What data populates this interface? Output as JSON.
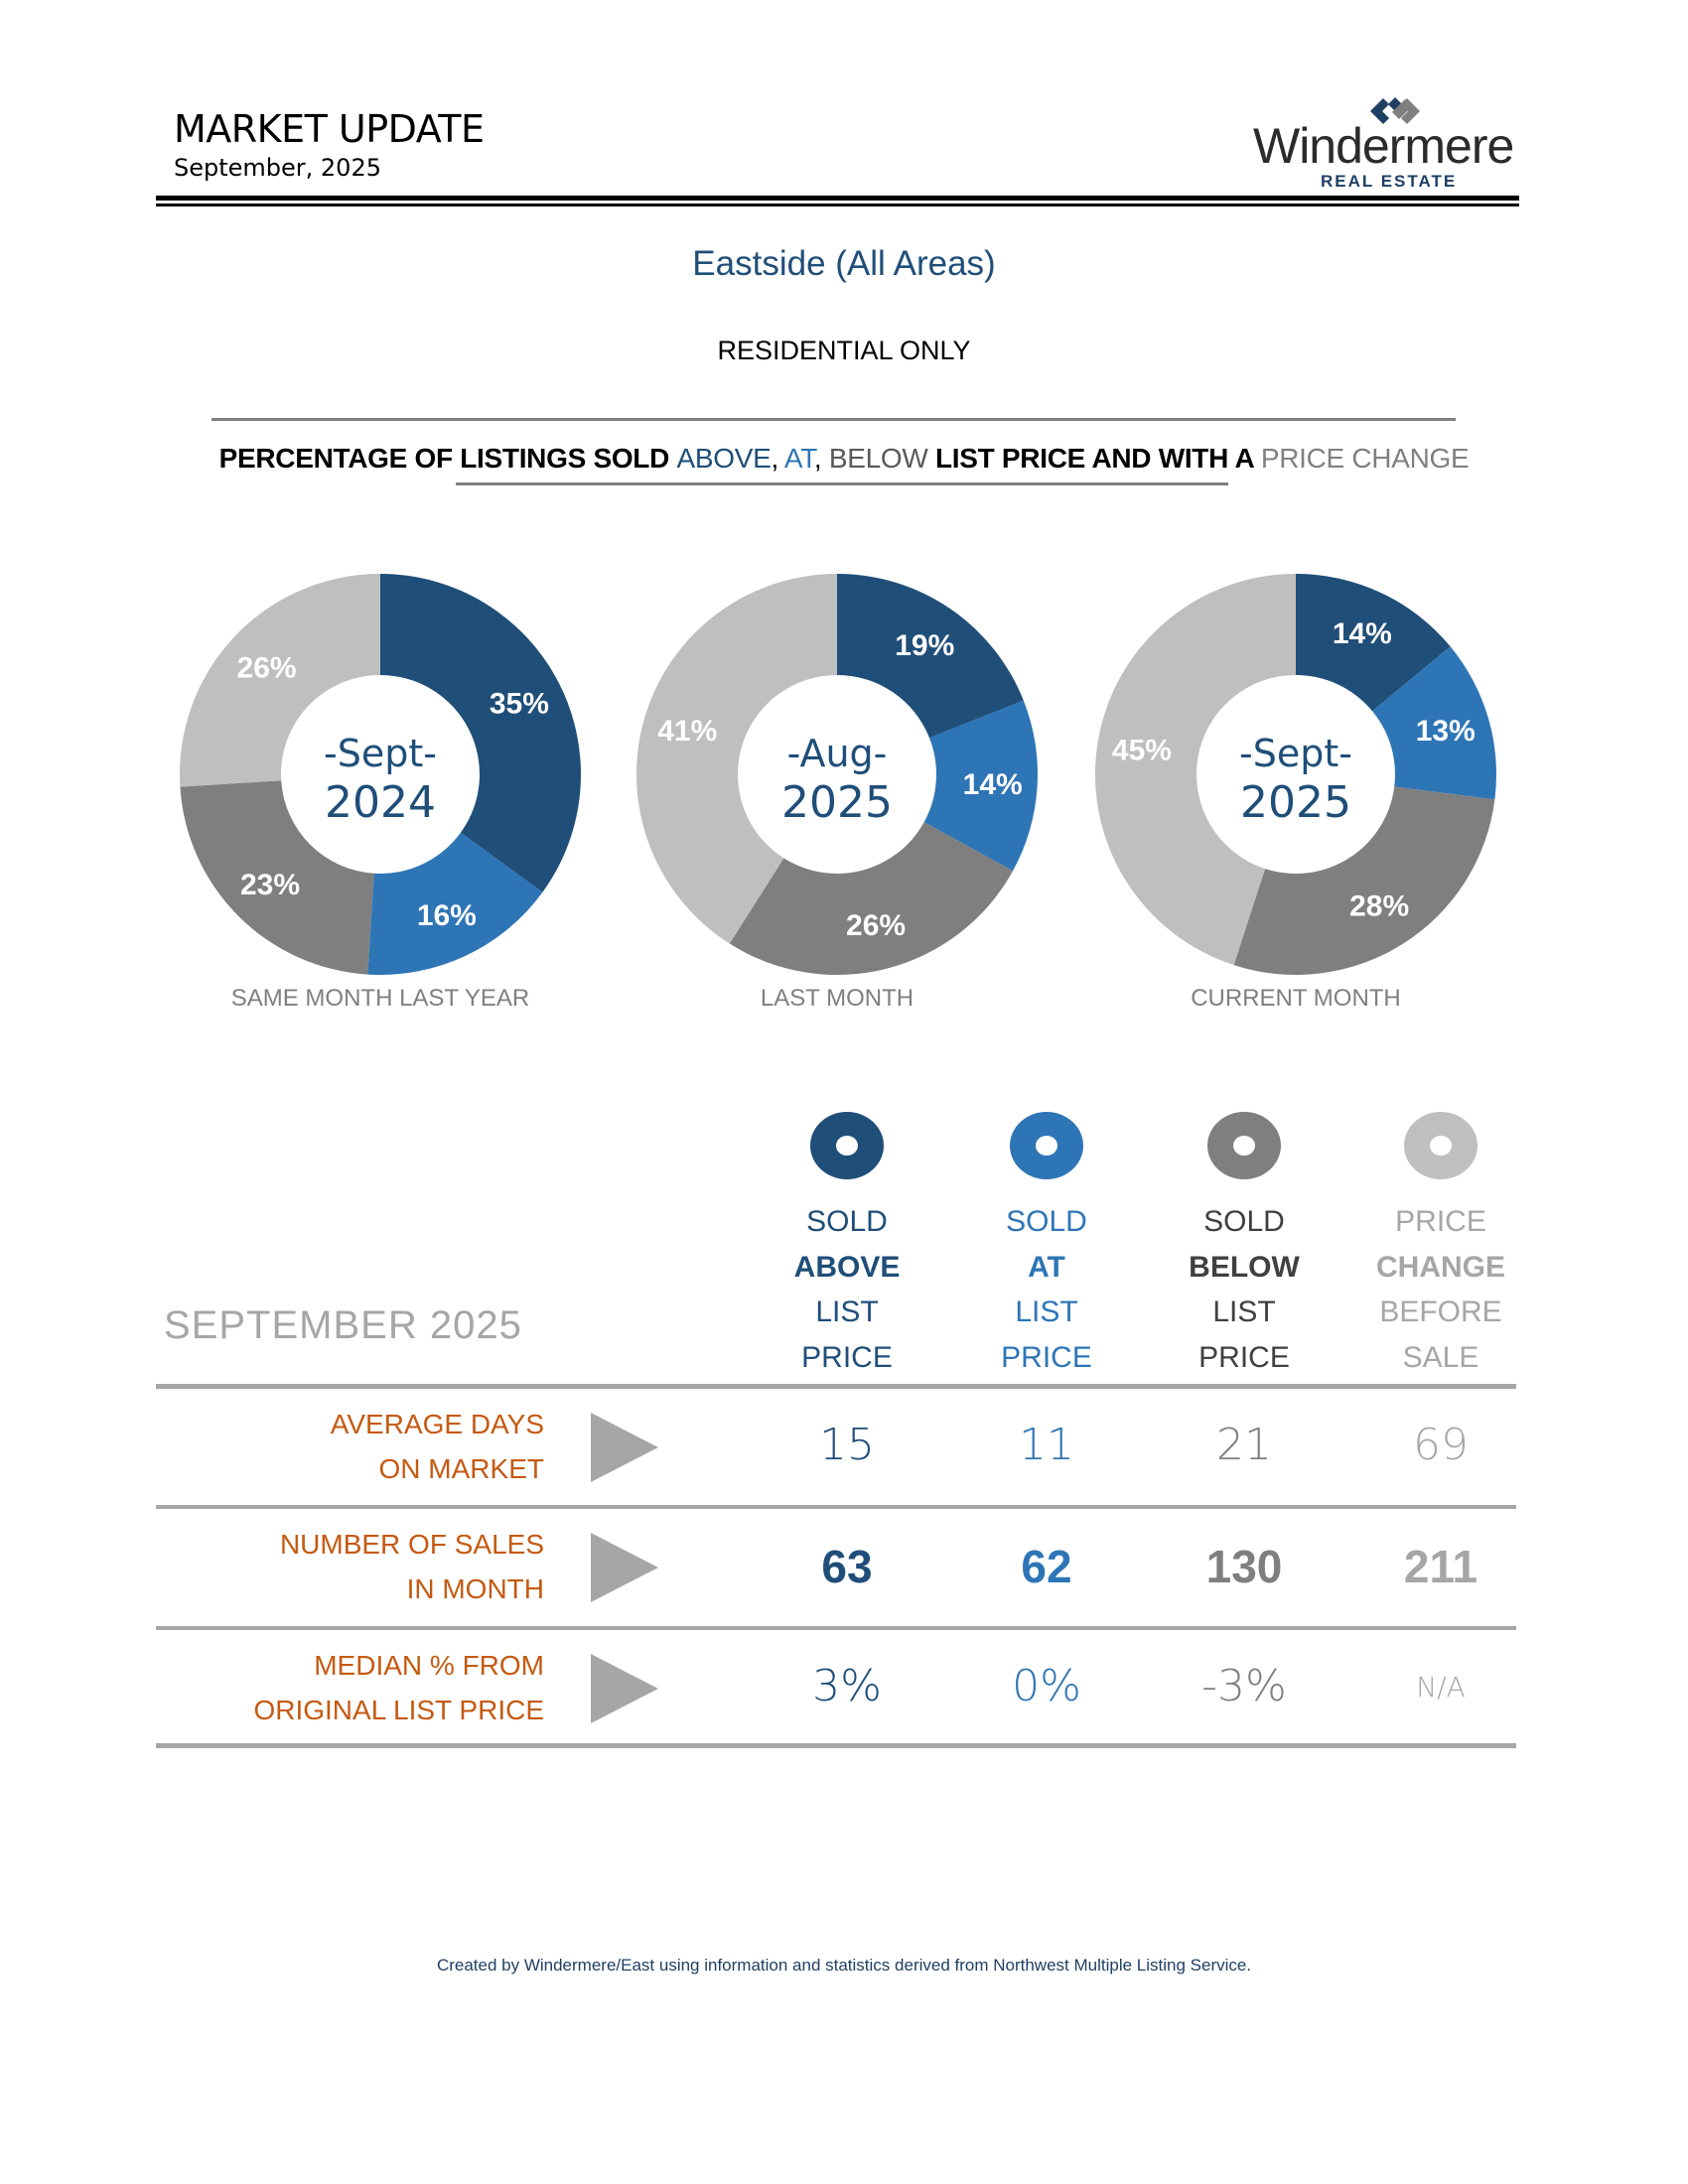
{
  "header": {
    "title": "MARKET UPDATE",
    "date": "September, 2025",
    "logo_word": "Windermere",
    "logo_sub": "REAL ESTATE"
  },
  "area_title": "Eastside (All Areas)",
  "subtitle": "RESIDENTIAL ONLY",
  "headline": {
    "prefix": "PERCENTAGE OF LISTINGS SOLD ",
    "above": "ABOVE",
    "comma1": ", ",
    "at": "AT",
    "comma2": ", ",
    "below": "BELOW",
    "middle": " LIST PRICE AND WITH A ",
    "change": "PRICE CHANGE"
  },
  "colors": {
    "above": "#1F4E79",
    "at": "#2E75B6",
    "below": "#7F7F7F",
    "price_change": "#BFBFBF",
    "row_label": "#C55A11",
    "rule": "#A6A6A6"
  },
  "chart_data": [
    {
      "type": "pie",
      "title": "-Sept- 2024",
      "center_line1": "-Sept-",
      "center_line2": "2024",
      "caption": "SAME MONTH LAST YEAR",
      "categories": [
        "Sold Above List Price",
        "Sold At List Price",
        "Sold Below List Price",
        "Price Change Before Sale"
      ],
      "values": [
        35,
        16,
        23,
        26
      ],
      "labels": [
        "35%",
        "16%",
        "23%",
        "26%"
      ],
      "donut": true
    },
    {
      "type": "pie",
      "title": "-Aug- 2025",
      "center_line1": "-Aug-",
      "center_line2": "2025",
      "caption": "LAST MONTH",
      "categories": [
        "Sold Above List Price",
        "Sold At List Price",
        "Sold Below List Price",
        "Price Change Before Sale"
      ],
      "values": [
        19,
        14,
        26,
        41
      ],
      "labels": [
        "19%",
        "14%",
        "26%",
        "41%"
      ],
      "donut": true
    },
    {
      "type": "pie",
      "title": "-Sept- 2025",
      "center_line1": "-Sept-",
      "center_line2": "2025",
      "caption": "CURRENT MONTH",
      "categories": [
        "Sold Above List Price",
        "Sold At List Price",
        "Sold Below List Price",
        "Price Change Before Sale"
      ],
      "values": [
        14,
        13,
        28,
        45
      ],
      "labels": [
        "14%",
        "13%",
        "28%",
        "45%"
      ],
      "donut": true
    }
  ],
  "table": {
    "month_label": "SEPTEMBER 2025",
    "columns": [
      {
        "icon": "donut-icon",
        "lines": [
          "SOLD",
          "ABOVE",
          "LIST",
          "PRICE"
        ],
        "bold_index": 1,
        "color": "#1F4E79",
        "text_color": "#1F4E79",
        "bold_color": "#1F4E79"
      },
      {
        "icon": "donut-icon",
        "lines": [
          "SOLD",
          "AT",
          "LIST",
          "PRICE"
        ],
        "bold_index": 1,
        "color": "#2E75B6",
        "text_color": "#2E75B6",
        "bold_color": "#2E75B6"
      },
      {
        "icon": "donut-icon",
        "lines": [
          "SOLD",
          "BELOW",
          "LIST",
          "PRICE"
        ],
        "bold_index": 1,
        "color": "#7F7F7F",
        "text_color": "#404040",
        "bold_color": "#404040"
      },
      {
        "icon": "donut-icon",
        "lines": [
          "PRICE",
          "CHANGE",
          "BEFORE",
          "SALE"
        ],
        "bold_index": 1,
        "color": "#BFBFBF",
        "text_color": "#A6A6A6",
        "bold_color": "#A6A6A6"
      }
    ],
    "rows": [
      {
        "label_line1": "AVERAGE DAYS",
        "label_line2": "ON MARKET",
        "values": [
          "15",
          "11",
          "21",
          "69"
        ],
        "style": "light"
      },
      {
        "label_line1": "NUMBER OF SALES",
        "label_line2": "IN MONTH",
        "values": [
          "63",
          "62",
          "130",
          "211"
        ],
        "style": "bold"
      },
      {
        "label_line1": "MEDIAN % FROM",
        "label_line2": "ORIGINAL LIST PRICE",
        "values": [
          "3%",
          "0%",
          "-3%",
          "N/A"
        ],
        "style": "light"
      }
    ],
    "value_colors": [
      "#1F4E79",
      "#2E75B6",
      "#7F7F7F",
      "#A6A6A6"
    ]
  },
  "footer": "Created by Windermere/East using information and statistics derived from Northwest Multiple Listing Service."
}
